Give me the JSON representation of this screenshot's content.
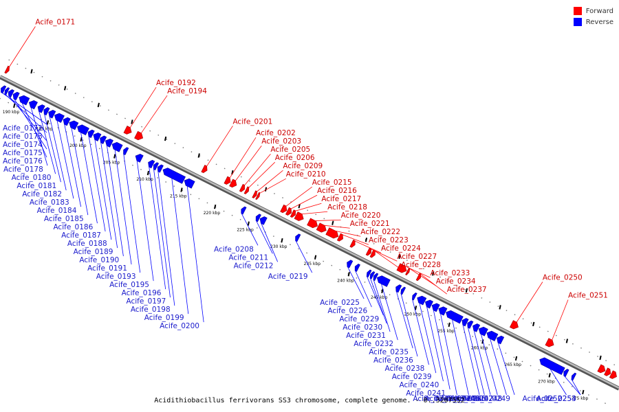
{
  "caption": "Acidithiobacillus ferrivorans SS3 chromosome, complete genome. - 0..3207552",
  "legend": [
    {
      "label": "Forward",
      "color": "#ff0000"
    },
    {
      "label": "Reverse",
      "color": "#0000ff"
    }
  ],
  "colors": {
    "forward": "#ff0000",
    "reverse": "#0000ff",
    "backbone": "#888888"
  },
  "ruler": {
    "unit": "kbp",
    "ticks": [
      {
        "label": "190 kbp",
        "pos": 190
      },
      {
        "label": "195 kbp",
        "pos": 195
      },
      {
        "label": "200 kbp",
        "pos": 200
      },
      {
        "label": "205 kbp",
        "pos": 205
      },
      {
        "label": "210 kbp",
        "pos": 210
      },
      {
        "label": "215 kbp",
        "pos": 215
      },
      {
        "label": "220 kbp",
        "pos": 220
      },
      {
        "label": "225 kbp",
        "pos": 225
      },
      {
        "label": "230 kbp",
        "pos": 230
      },
      {
        "label": "235 kbp",
        "pos": 235
      },
      {
        "label": "240 kbp",
        "pos": 240
      },
      {
        "label": "245 kbp",
        "pos": 245
      },
      {
        "label": "250 kbp",
        "pos": 250
      },
      {
        "label": "255 kbp",
        "pos": 255
      },
      {
        "label": "260 kbp",
        "pos": 260
      },
      {
        "label": "265 kbp",
        "pos": 265
      },
      {
        "label": "270 kbp",
        "pos": 270
      },
      {
        "label": "275 kbp",
        "pos": 275
      }
    ]
  },
  "genes": [
    {
      "label": "Acife_0171",
      "strand": "forward",
      "start": 186.8,
      "end": 187.2
    },
    {
      "label": "Acife_0172",
      "strand": "reverse",
      "start": 187.3,
      "end": 187.8
    },
    {
      "label": "Acife_0173",
      "strand": "reverse",
      "start": 187.9,
      "end": 188.3
    },
    {
      "label": "Acife_0174",
      "strand": "reverse",
      "start": 188.4,
      "end": 189.0
    },
    {
      "label": "Acife_0175",
      "strand": "reverse",
      "start": 189.1,
      "end": 189.8
    },
    {
      "label": "Acife_0176",
      "strand": "reverse",
      "start": 190.0,
      "end": 191.3
    },
    {
      "label": "Acife_0178",
      "strand": "reverse",
      "start": 191.5,
      "end": 192.5
    },
    {
      "label": "Acife_0180",
      "strand": "reverse",
      "start": 192.8,
      "end": 193.6
    },
    {
      "label": "Acife_0181",
      "strand": "reverse",
      "start": 193.7,
      "end": 194.3
    },
    {
      "label": "Acife_0182",
      "strand": "reverse",
      "start": 194.4,
      "end": 195.2
    },
    {
      "label": "Acife_0183",
      "strand": "reverse",
      "start": 195.3,
      "end": 196.5
    },
    {
      "label": "Acife_0184",
      "strand": "reverse",
      "start": 196.6,
      "end": 197.4
    },
    {
      "label": "Acife_0185",
      "strand": "reverse",
      "start": 197.5,
      "end": 198.6
    },
    {
      "label": "Acife_0186",
      "strand": "reverse",
      "start": 198.7,
      "end": 200.2
    },
    {
      "label": "Acife_0187",
      "strand": "reverse",
      "start": 200.3,
      "end": 201.0
    },
    {
      "label": "Acife_0188",
      "strand": "reverse",
      "start": 201.1,
      "end": 202.0
    },
    {
      "label": "Acife_0189",
      "strand": "reverse",
      "start": 202.1,
      "end": 202.8
    },
    {
      "label": "Acife_0190",
      "strand": "reverse",
      "start": 202.9,
      "end": 203.8
    },
    {
      "label": "Acife_0191",
      "strand": "reverse",
      "start": 203.9,
      "end": 205.2
    },
    {
      "label": "Acife_0192",
      "strand": "forward",
      "start": 204.6,
      "end": 205.5
    },
    {
      "label": "Acife_0193",
      "strand": "reverse",
      "start": 205.6,
      "end": 206.1
    },
    {
      "label": "Acife_0194",
      "strand": "forward",
      "start": 206.2,
      "end": 207.2
    },
    {
      "label": "Acife_0195",
      "strand": "reverse",
      "start": 207.4,
      "end": 208.3
    },
    {
      "label": "Acife_0196",
      "strand": "reverse",
      "start": 209.3,
      "end": 210.0
    },
    {
      "label": "Acife_0197",
      "strand": "reverse",
      "start": 210.1,
      "end": 210.6
    },
    {
      "label": "Acife_0198",
      "strand": "reverse",
      "start": 210.7,
      "end": 211.3
    },
    {
      "label": "Acife_0199",
      "strand": "reverse",
      "start": 211.5,
      "end": 214.6
    },
    {
      "label": "Acife_0200",
      "strand": "reverse",
      "start": 214.7,
      "end": 216.0
    },
    {
      "label": "Acife_0201",
      "strand": "forward",
      "start": 216.2,
      "end": 216.8
    },
    {
      "label": "Acife_0202",
      "strand": "forward",
      "start": 219.6,
      "end": 220.3
    },
    {
      "label": "Acife_0203",
      "strand": "forward",
      "start": 220.4,
      "end": 221.2
    },
    {
      "label": "Acife_0205",
      "strand": "forward",
      "start": 221.9,
      "end": 222.4
    },
    {
      "label": "Acife_0206",
      "strand": "forward",
      "start": 222.6,
      "end": 223.0
    },
    {
      "label": "Acife_0208",
      "strand": "reverse",
      "start": 223.2,
      "end": 223.7
    },
    {
      "label": "Acife_0209",
      "strand": "forward",
      "start": 223.8,
      "end": 224.2
    },
    {
      "label": "Acife_0210",
      "strand": "forward",
      "start": 224.3,
      "end": 224.6
    },
    {
      "label": "Acife_0211",
      "strand": "reverse",
      "start": 225.4,
      "end": 225.9
    },
    {
      "label": "Acife_0212",
      "strand": "reverse",
      "start": 226.0,
      "end": 226.8
    },
    {
      "label": "Acife_0215",
      "strand": "forward",
      "start": 228.0,
      "end": 228.7
    },
    {
      "label": "Acife_0216",
      "strand": "forward",
      "start": 228.8,
      "end": 229.4
    },
    {
      "label": "Acife_0217",
      "strand": "forward",
      "start": 229.5,
      "end": 230.0
    },
    {
      "label": "Acife_0218",
      "strand": "forward",
      "start": 230.1,
      "end": 231.2
    },
    {
      "label": "Acife_0219",
      "strand": "reverse",
      "start": 231.3,
      "end": 231.8
    },
    {
      "label": "Acife_0220",
      "strand": "forward",
      "start": 232.0,
      "end": 233.3
    },
    {
      "label": "Acife_0221",
      "strand": "forward",
      "start": 233.4,
      "end": 234.6
    },
    {
      "label": "Acife_0222",
      "strand": "forward",
      "start": 234.8,
      "end": 236.4
    },
    {
      "label": "Acife_0223",
      "strand": "forward",
      "start": 236.5,
      "end": 237.1
    },
    {
      "label": "Acife_0224",
      "strand": "forward",
      "start": 238.4,
      "end": 238.9
    },
    {
      "label": "Acife_0225",
      "strand": "reverse",
      "start": 239.0,
      "end": 239.6
    },
    {
      "label": "Acife_0226",
      "strand": "reverse",
      "start": 240.2,
      "end": 240.7
    },
    {
      "label": "Acife_0227",
      "strand": "forward",
      "start": 240.8,
      "end": 241.3
    },
    {
      "label": "Acife_0228",
      "strand": "forward",
      "start": 241.4,
      "end": 241.9
    },
    {
      "label": "Acife_0229",
      "strand": "reverse",
      "start": 242.0,
      "end": 242.4
    },
    {
      "label": "Acife_0230",
      "strand": "reverse",
      "start": 242.5,
      "end": 242.9
    },
    {
      "label": "Acife_0231",
      "strand": "reverse",
      "start": 243.0,
      "end": 243.4
    },
    {
      "label": "Acife_0232",
      "strand": "reverse",
      "start": 243.5,
      "end": 245.2
    },
    {
      "label": "Acife_0233",
      "strand": "forward",
      "start": 245.4,
      "end": 246.6
    },
    {
      "label": "Acife_0234",
      "strand": "forward",
      "start": 246.7,
      "end": 247.0
    },
    {
      "label": "Acife_0235",
      "strand": "reverse",
      "start": 246.3,
      "end": 246.9
    },
    {
      "label": "Acife_0236",
      "strand": "reverse",
      "start": 247.1,
      "end": 247.5
    },
    {
      "label": "Acife_0237",
      "strand": "forward",
      "start": 248.3,
      "end": 248.7
    },
    {
      "label": "Acife_0238",
      "strand": "reverse",
      "start": 248.8,
      "end": 249.2
    },
    {
      "label": "Acife_0239",
      "strand": "reverse",
      "start": 249.5,
      "end": 250.6
    },
    {
      "label": "Acife_0240",
      "strand": "reverse",
      "start": 250.7,
      "end": 251.6
    },
    {
      "label": "Acife_0241",
      "strand": "reverse",
      "start": 251.7,
      "end": 252.6
    },
    {
      "label": "Acife_0242",
      "strand": "reverse",
      "start": 252.7,
      "end": 253.7
    },
    {
      "label": "Acife_0243",
      "strand": "reverse",
      "start": 253.8,
      "end": 256.1
    },
    {
      "label": "Acife_0244",
      "strand": "reverse",
      "start": 256.2,
      "end": 256.9
    },
    {
      "label": "Acife_0245",
      "strand": "reverse",
      "start": 257.0,
      "end": 257.6
    },
    {
      "label": "Acife_0246",
      "strand": "reverse",
      "start": 257.8,
      "end": 258.6
    },
    {
      "label": "Acife_0247",
      "strand": "reverse",
      "start": 258.7,
      "end": 259.8
    },
    {
      "label": "Acife_0248",
      "strand": "reverse",
      "start": 259.9,
      "end": 261.3
    },
    {
      "label": "Acife_0249",
      "strand": "reverse",
      "start": 261.4,
      "end": 262.2
    },
    {
      "label": "Acife_0250",
      "strand": "forward",
      "start": 262.3,
      "end": 263.3
    },
    {
      "label": "Acife_0251",
      "strand": "forward",
      "start": 267.6,
      "end": 268.6
    },
    {
      "label": "Acife_0252",
      "strand": "reverse",
      "start": 267.8,
      "end": 271.3
    },
    {
      "label": "Acife_0253",
      "strand": "reverse",
      "start": 271.4,
      "end": 271.9
    },
    {
      "label": "Acife_0254",
      "strand": "reverse",
      "start": 272.6,
      "end": 273.0
    }
  ],
  "extra_forward": [
    {
      "start": 275.4,
      "end": 276.3
    },
    {
      "start": 276.4,
      "end": 277.1
    },
    {
      "start": 277.2,
      "end": 278.0
    }
  ]
}
